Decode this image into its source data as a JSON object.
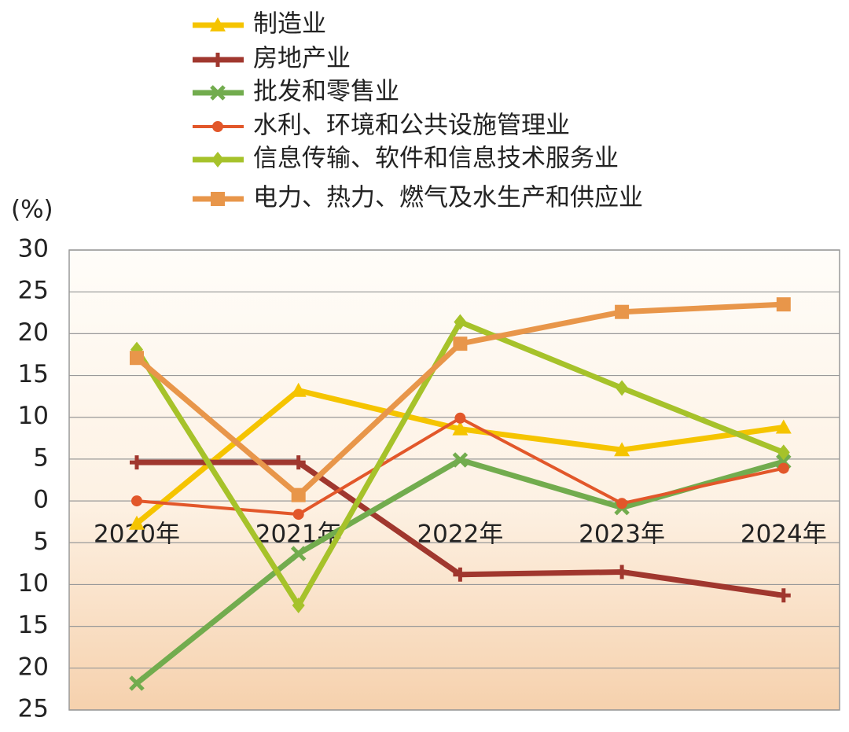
{
  "chart_data": {
    "type": "line",
    "y_unit": "(%)",
    "categories": [
      "2020年",
      "2021年",
      "2022年",
      "2023年",
      "2024年"
    ],
    "series": [
      {
        "name": "制造业",
        "color": "#f5c400",
        "marker": "triangle",
        "values": [
          -2.7,
          13.2,
          8.6,
          6.1,
          8.8
        ]
      },
      {
        "name": "房地产业",
        "color": "#a0372e",
        "marker": "plus",
        "values": [
          4.6,
          4.6,
          -8.8,
          -8.5,
          -11.3
        ]
      },
      {
        "name": "批发和零售业",
        "color": "#72ac4e",
        "marker": "x",
        "values": [
          -21.8,
          -6.3,
          4.9,
          -0.8,
          4.7
        ]
      },
      {
        "name": "水利、环境和公共设施管理业",
        "color": "#e2572a",
        "marker": "circle",
        "values": [
          0,
          -1.6,
          9.9,
          -0.3,
          3.9
        ]
      },
      {
        "name": "信息传输、软件和信息技术服务业",
        "color": "#a6c22a",
        "marker": "diamond",
        "values": [
          18.1,
          -12.5,
          21.4,
          13.5,
          5.8
        ]
      },
      {
        "name": "电力、热力、燃气及水生产和供应业",
        "color": "#e8964a",
        "marker": "square",
        "values": [
          17.1,
          0.7,
          18.8,
          22.6,
          23.5
        ]
      }
    ],
    "ylim": [
      -25,
      30
    ],
    "yticks": [
      {
        "value": -25,
        "label": "25"
      },
      {
        "value": -20,
        "label": "20"
      },
      {
        "value": -15,
        "label": "15"
      },
      {
        "value": -10,
        "label": "10"
      },
      {
        "value": -5,
        "label": "5"
      },
      0,
      5,
      10,
      15,
      20,
      25,
      30
    ],
    "grid": true
  }
}
